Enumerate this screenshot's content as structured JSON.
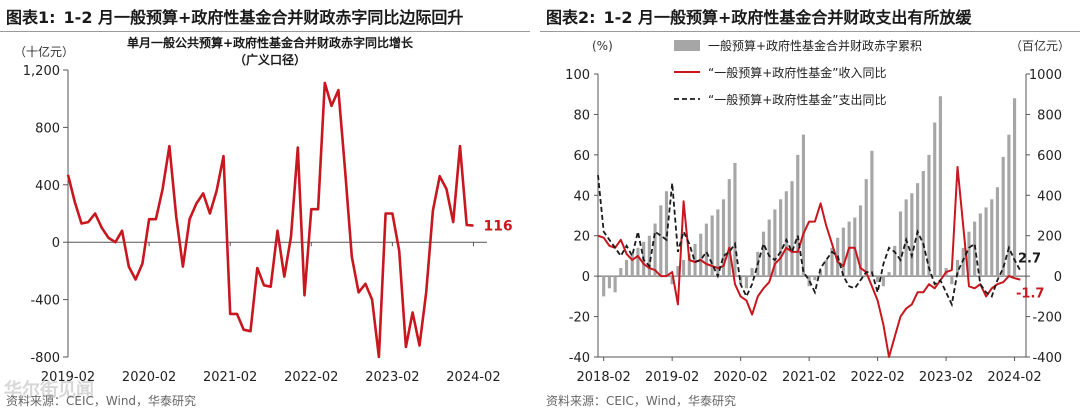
{
  "left": {
    "figure_no": "图表1:",
    "title": "1-2 月一般预算+政府性基金合并财政赤字同比边际回升",
    "source": "资料来源：CEIC，Wind，华泰研究"
  },
  "right": {
    "figure_no": "图表2:",
    "title": "1-2 月一般预算+政府性基金合并财政支出有所放缓",
    "source": "资料来源：CEIC，Wind，华泰研究"
  },
  "watermark": "华尔街见闻",
  "colors": {
    "red": "#c8171e",
    "gray": "#a6a6a6",
    "black": "#1a1a1a",
    "axis": "#555555"
  },
  "chart_data": [
    {
      "type": "line",
      "title": "单月一般公共预算+政府性基金合并财政赤字同比增长",
      "subtitle": "（广义口径）",
      "ylabel": "（十亿元）",
      "ylim": [
        -800,
        1200
      ],
      "yticks": [
        -800,
        -400,
        0,
        400,
        800,
        1200
      ],
      "ytick_labels": [
        "-800",
        "-400",
        "0",
        "400",
        "800",
        "1,200"
      ],
      "x_range": [
        2019.083,
        2024.25
      ],
      "xticks": [
        2019.083,
        2020.083,
        2021.083,
        2022.083,
        2023.083,
        2024.083
      ],
      "xtick_labels": [
        "2019-02",
        "2020-02",
        "2021-02",
        "2022-02",
        "2023-02",
        "2024-02"
      ],
      "end_label": "116",
      "series": [
        {
          "name": "单月一般公共预算+政府性基金合并财政赤字同比增长",
          "color": "#c8171e",
          "x": [
            2019.083,
            2019.167,
            2019.25,
            2019.333,
            2019.417,
            2019.5,
            2019.583,
            2019.667,
            2019.75,
            2019.833,
            2019.917,
            2020.0,
            2020.083,
            2020.167,
            2020.25,
            2020.333,
            2020.417,
            2020.5,
            2020.583,
            2020.667,
            2020.75,
            2020.833,
            2020.917,
            2021.0,
            2021.083,
            2021.167,
            2021.25,
            2021.333,
            2021.417,
            2021.5,
            2021.583,
            2021.667,
            2021.75,
            2021.833,
            2021.917,
            2022.0,
            2022.083,
            2022.167,
            2022.25,
            2022.333,
            2022.417,
            2022.5,
            2022.583,
            2022.667,
            2022.75,
            2022.833,
            2022.917,
            2023.0,
            2023.083,
            2023.167,
            2023.25,
            2023.333,
            2023.417,
            2023.5,
            2023.583,
            2023.667,
            2023.75,
            2023.833,
            2023.917,
            2024.0,
            2024.083
          ],
          "values": [
            470,
            280,
            130,
            140,
            200,
            100,
            30,
            0,
            80,
            -170,
            -260,
            -150,
            160,
            160,
            370,
            670,
            180,
            -170,
            160,
            270,
            340,
            200,
            360,
            600,
            -500,
            -500,
            -610,
            -620,
            -180,
            -300,
            -310,
            80,
            -240,
            40,
            660,
            -370,
            230,
            230,
            1110,
            950,
            1060,
            500,
            -100,
            -350,
            -290,
            -400,
            -800,
            200,
            200,
            -60,
            -730,
            -490,
            -720,
            -350,
            220,
            460,
            370,
            140,
            670,
            120,
            116
          ]
        }
      ]
    },
    {
      "type": "bar+line",
      "ylabel_left": "(%)",
      "ylabel_right": "（百亿元）",
      "ylim_left": [
        -40,
        100
      ],
      "yticks_left": [
        -40,
        -20,
        0,
        20,
        40,
        60,
        80,
        100
      ],
      "ylim_right": [
        -400,
        1000
      ],
      "yticks_right": [
        -400,
        -200,
        0,
        200,
        400,
        600,
        800,
        1000
      ],
      "x_range": [
        2018.0,
        2024.25
      ],
      "xticks": [
        2018.083,
        2019.083,
        2020.083,
        2021.083,
        2022.083,
        2023.083,
        2024.083
      ],
      "xtick_labels": [
        "2018-02",
        "2019-02",
        "2020-02",
        "2021-02",
        "2022-02",
        "2023-02",
        "2024-02"
      ],
      "end_labels": [
        {
          "text": "2.7",
          "color": "#1a1a1a",
          "value": 2.7
        },
        {
          "text": "-1.7",
          "color": "#c8171e",
          "value": -1.7
        }
      ],
      "legend": [
        "一般预算+政府性基金合并财政赤字累积",
        "“一般预算+政府性基金”收入同比",
        "“一般预算+政府性基金”支出同比"
      ],
      "bars": {
        "name": "一般预算+政府性基金合并财政赤字累积",
        "axis": "right",
        "color": "#a6a6a6",
        "x": [
          2018.083,
          2018.167,
          2018.25,
          2018.333,
          2018.417,
          2018.5,
          2018.583,
          2018.667,
          2018.75,
          2018.833,
          2018.917,
          2019.0,
          2019.083,
          2019.167,
          2019.25,
          2019.333,
          2019.417,
          2019.5,
          2019.583,
          2019.667,
          2019.75,
          2019.833,
          2019.917,
          2020.0,
          2020.083,
          2020.167,
          2020.25,
          2020.333,
          2020.417,
          2020.5,
          2020.583,
          2020.667,
          2020.75,
          2020.833,
          2020.917,
          2021.0,
          2021.083,
          2021.167,
          2021.25,
          2021.333,
          2021.417,
          2021.5,
          2021.583,
          2021.667,
          2021.75,
          2021.833,
          2021.917,
          2022.0,
          2022.083,
          2022.167,
          2022.25,
          2022.333,
          2022.417,
          2022.5,
          2022.583,
          2022.667,
          2022.75,
          2022.833,
          2022.917,
          2023.0,
          2023.083,
          2023.167,
          2023.25,
          2023.333,
          2023.417,
          2023.5,
          2023.583,
          2023.667,
          2023.75,
          2023.833,
          2023.917,
          2024.0,
          2024.083
        ],
        "values": [
          -100,
          -60,
          -80,
          40,
          80,
          110,
          140,
          170,
          200,
          260,
          350,
          420,
          -40,
          50,
          80,
          110,
          160,
          210,
          260,
          300,
          330,
          380,
          480,
          560,
          -40,
          -60,
          40,
          120,
          220,
          280,
          330,
          380,
          420,
          470,
          600,
          700,
          -50,
          -20,
          30,
          80,
          140,
          190,
          240,
          270,
          290,
          350,
          480,
          620,
          -30,
          -50,
          20,
          150,
          320,
          380,
          410,
          460,
          520,
          600,
          760,
          890,
          40,
          -40,
          80,
          140,
          220,
          270,
          310,
          340,
          380,
          440,
          590,
          700,
          880
        ]
      },
      "series": [
        {
          "name": "“一般预算+政府性基金”收入同比",
          "axis": "left",
          "color": "#c8171e",
          "x": [
            2018.0,
            2018.083,
            2018.167,
            2018.25,
            2018.333,
            2018.417,
            2018.5,
            2018.583,
            2018.667,
            2018.75,
            2018.833,
            2018.917,
            2019.0,
            2019.083,
            2019.167,
            2019.25,
            2019.333,
            2019.417,
            2019.5,
            2019.583,
            2019.667,
            2019.75,
            2019.833,
            2019.917,
            2020.0,
            2020.083,
            2020.167,
            2020.25,
            2020.333,
            2020.417,
            2020.5,
            2020.583,
            2020.667,
            2020.75,
            2020.833,
            2020.917,
            2021.0,
            2021.083,
            2021.167,
            2021.25,
            2021.333,
            2021.417,
            2021.5,
            2021.583,
            2021.667,
            2021.75,
            2021.833,
            2021.917,
            2022.0,
            2022.083,
            2022.167,
            2022.25,
            2022.333,
            2022.417,
            2022.5,
            2022.583,
            2022.667,
            2022.75,
            2022.833,
            2022.917,
            2023.0,
            2023.083,
            2023.167,
            2023.25,
            2023.333,
            2023.417,
            2023.5,
            2023.583,
            2023.667,
            2023.75,
            2023.833,
            2023.917,
            2024.0,
            2024.083,
            2024.167
          ],
          "values": [
            20,
            19,
            15,
            14,
            18,
            11,
            8,
            10,
            6,
            4,
            3,
            0,
            0,
            2,
            -14,
            37,
            8,
            7,
            8,
            6,
            5,
            4,
            5,
            14,
            -4,
            -10,
            -12,
            -19,
            -10,
            -6,
            -3,
            6,
            9,
            14,
            12,
            12,
            21,
            27,
            27,
            36,
            25,
            16,
            7,
            5,
            14,
            14,
            4,
            2,
            -5,
            -12,
            -24,
            -40,
            -30,
            -20,
            -16,
            -14,
            -8,
            -8,
            -4,
            -6,
            -2,
            2,
            3,
            54,
            25,
            -5,
            -6,
            -4,
            -10,
            -6,
            -4,
            -3,
            0,
            -1,
            -1.7
          ]
        },
        {
          "name": "“一般预算+政府性基金”支出同比",
          "axis": "left",
          "color": "#1a1a1a",
          "x": [
            2018.0,
            2018.083,
            2018.167,
            2018.25,
            2018.333,
            2018.417,
            2018.5,
            2018.583,
            2018.667,
            2018.75,
            2018.833,
            2018.917,
            2019.0,
            2019.083,
            2019.167,
            2019.25,
            2019.333,
            2019.417,
            2019.5,
            2019.583,
            2019.667,
            2019.75,
            2019.833,
            2019.917,
            2020.0,
            2020.083,
            2020.167,
            2020.25,
            2020.333,
            2020.417,
            2020.5,
            2020.583,
            2020.667,
            2020.75,
            2020.833,
            2020.917,
            2021.0,
            2021.083,
            2021.167,
            2021.25,
            2021.333,
            2021.417,
            2021.5,
            2021.583,
            2021.667,
            2021.75,
            2021.833,
            2021.917,
            2022.0,
            2022.083,
            2022.167,
            2022.25,
            2022.333,
            2022.417,
            2022.5,
            2022.583,
            2022.667,
            2022.75,
            2022.833,
            2022.917,
            2023.0,
            2023.083,
            2023.167,
            2023.25,
            2023.333,
            2023.417,
            2023.5,
            2023.583,
            2023.667,
            2023.75,
            2023.833,
            2023.917,
            2024.0,
            2024.083,
            2024.167
          ],
          "values": [
            50,
            22,
            18,
            14,
            10,
            15,
            10,
            22,
            8,
            5,
            22,
            20,
            18,
            46,
            12,
            22,
            16,
            7,
            8,
            12,
            6,
            0,
            10,
            12,
            16,
            -4,
            -10,
            -4,
            6,
            16,
            10,
            8,
            12,
            18,
            12,
            20,
            2,
            -2,
            -8,
            4,
            8,
            12,
            10,
            0,
            -5,
            -6,
            -2,
            2,
            2,
            -8,
            6,
            14,
            12,
            8,
            18,
            10,
            22,
            16,
            4,
            -4,
            -2,
            -8,
            -14,
            2,
            8,
            14,
            16,
            -4,
            -8,
            -10,
            -2,
            4,
            14,
            8,
            2.7
          ]
        }
      ]
    }
  ]
}
